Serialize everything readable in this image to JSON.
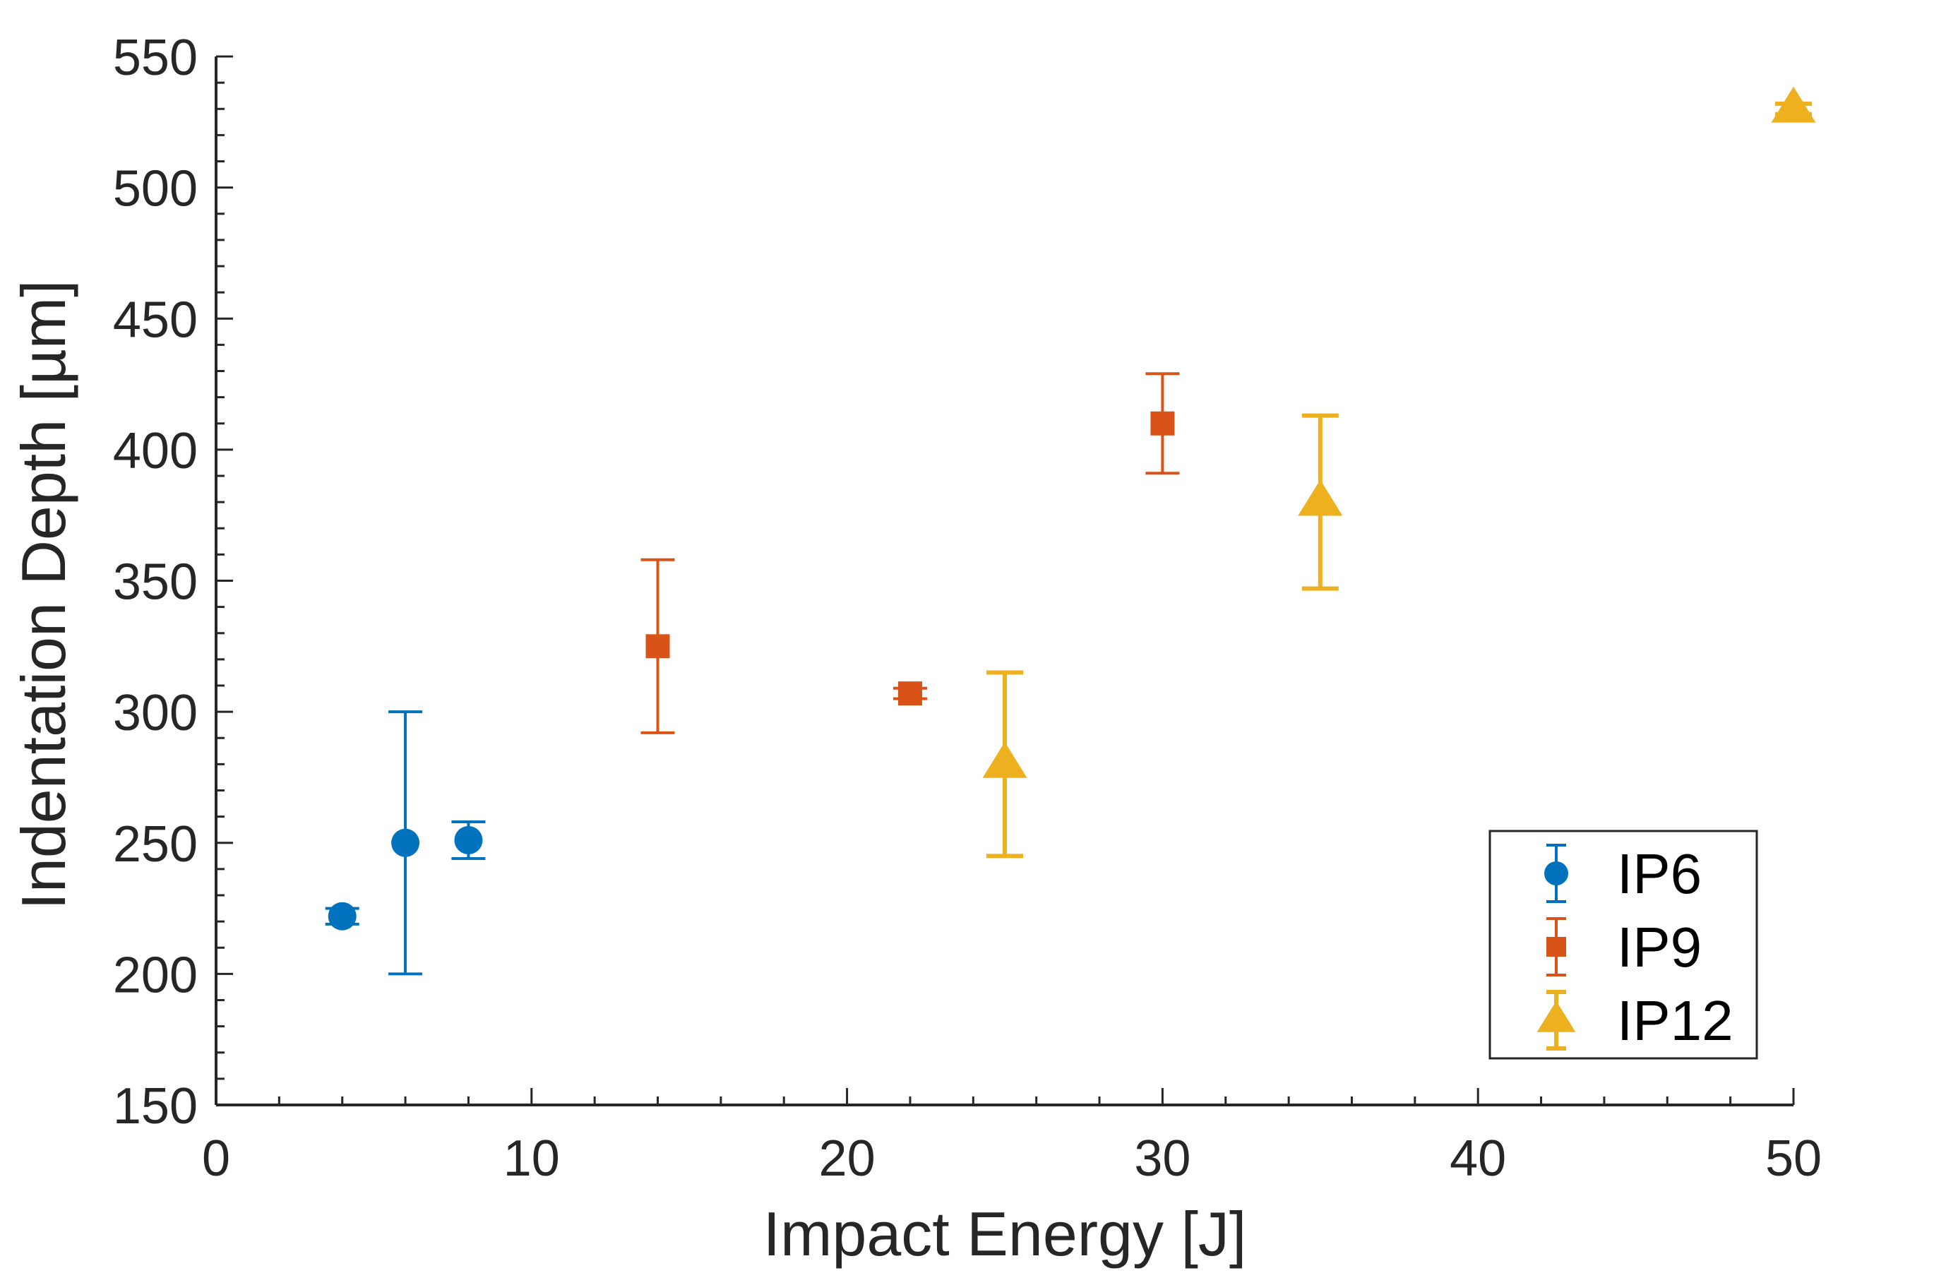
{
  "chart_data": {
    "type": "scatter",
    "title": "",
    "xlabel": "Impact Energy [J]",
    "ylabel": "Indentation Depth [µm]",
    "xlim": [
      0,
      50
    ],
    "ylim": [
      150,
      550
    ],
    "xticks": [
      0,
      10,
      20,
      30,
      40,
      50
    ],
    "yticks": [
      150,
      200,
      250,
      300,
      350,
      400,
      450,
      500,
      550
    ],
    "grid": false,
    "legend_position": "bottom-right",
    "series": [
      {
        "name": "IP6",
        "marker": "circle",
        "color": "#0072BD",
        "points": [
          {
            "x": 4,
            "y": 222,
            "err": 3
          },
          {
            "x": 6,
            "y": 250,
            "err": 50
          },
          {
            "x": 8,
            "y": 251,
            "err": 7
          }
        ]
      },
      {
        "name": "IP9",
        "marker": "square",
        "color": "#D95319",
        "points": [
          {
            "x": 14,
            "y": 325,
            "err": 33
          },
          {
            "x": 22,
            "y": 307,
            "err": 2
          },
          {
            "x": 30,
            "y": 410,
            "err": 19
          }
        ]
      },
      {
        "name": "IP12",
        "marker": "triangle",
        "color": "#EDB120",
        "points": [
          {
            "x": 25,
            "y": 280,
            "err": 35
          },
          {
            "x": 35,
            "y": 380,
            "err": 33
          },
          {
            "x": 50,
            "y": 530,
            "err": 2
          }
        ]
      }
    ]
  }
}
